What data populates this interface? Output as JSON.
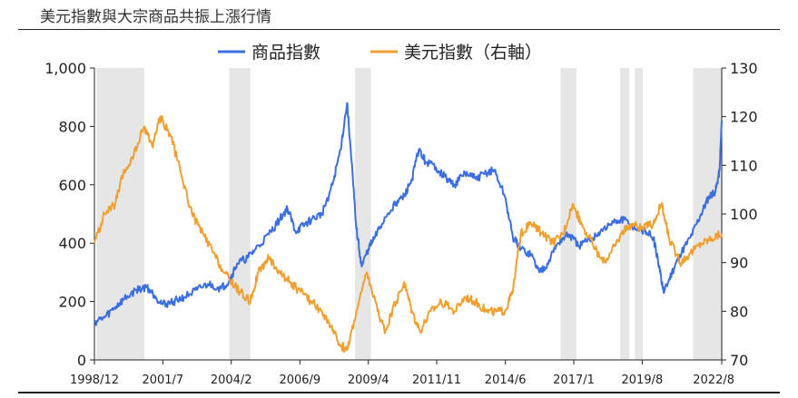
{
  "chart_data": {
    "type": "line",
    "title": "美元指數與大宗商品共振上漲行情",
    "x_tick_labels": [
      "1998/12",
      "2001/7",
      "2004/2",
      "2006/9",
      "2009/4",
      "2011/11",
      "2014/6",
      "2017/1",
      "2019/8",
      "2022/8"
    ],
    "x_tick_years": [
      1998.92,
      2001.5,
      2004.08,
      2006.67,
      2009.25,
      2011.83,
      2014.42,
      2017.0,
      2019.58,
      2022.58
    ],
    "x_range": [
      1998.92,
      2022.58
    ],
    "left_axis": {
      "label": "",
      "range": [
        0,
        1000
      ],
      "ticks": [
        0,
        200,
        400,
        600,
        800,
        1000
      ],
      "tick_labels": [
        "0",
        "200",
        "400",
        "600",
        "800",
        "1,000"
      ]
    },
    "right_axis": {
      "label": "",
      "range": [
        70,
        130
      ],
      "ticks": [
        70,
        80,
        90,
        100,
        110,
        120,
        130
      ],
      "tick_labels": [
        "70",
        "80",
        "90",
        "100",
        "110",
        "120",
        "130"
      ]
    },
    "legend": {
      "position": "top-center"
    },
    "shaded_periods": [
      [
        1999.0,
        2000.8
      ],
      [
        2004.0,
        2004.8
      ],
      [
        2008.75,
        2009.35
      ],
      [
        2016.5,
        2017.1
      ],
      [
        2018.75,
        2019.1
      ],
      [
        2019.3,
        2019.6
      ],
      [
        2021.5,
        2022.58
      ]
    ],
    "series": [
      {
        "name": "商品指數",
        "axis": "left",
        "color": "#3d6ee0",
        "x": [
          1998.92,
          1999.3,
          1999.7,
          2000.0,
          2000.5,
          2000.9,
          2001.2,
          2001.5,
          2001.9,
          2002.3,
          2002.8,
          2003.2,
          2003.7,
          2004.0,
          2004.3,
          2004.7,
          2005.0,
          2005.5,
          2005.9,
          2006.2,
          2006.5,
          2006.8,
          2007.1,
          2007.5,
          2007.9,
          2008.2,
          2008.45,
          2008.6,
          2008.8,
          2009.0,
          2009.25,
          2009.5,
          2009.9,
          2010.3,
          2010.6,
          2010.9,
          2011.15,
          2011.4,
          2011.8,
          2012.2,
          2012.5,
          2012.9,
          2013.3,
          2013.7,
          2014.0,
          2014.4,
          2014.7,
          2015.0,
          2015.4,
          2015.7,
          2016.0,
          2016.4,
          2016.8,
          2017.2,
          2017.6,
          2018.0,
          2018.5,
          2018.9,
          2019.3,
          2019.7,
          2020.0,
          2020.25,
          2020.4,
          2020.7,
          2021.0,
          2021.4,
          2021.8,
          2022.1,
          2022.35,
          2022.5,
          2022.58
        ],
        "values": [
          130,
          145,
          180,
          205,
          240,
          250,
          220,
          190,
          200,
          215,
          240,
          260,
          245,
          270,
          330,
          350,
          380,
          430,
          480,
          520,
          440,
          460,
          480,
          500,
          600,
          720,
          880,
          700,
          450,
          320,
          380,
          420,
          490,
          540,
          560,
          620,
          720,
          680,
          660,
          620,
          600,
          640,
          620,
          640,
          650,
          560,
          420,
          380,
          360,
          300,
          330,
          400,
          430,
          390,
          410,
          440,
          470,
          480,
          450,
          440,
          420,
          300,
          230,
          300,
          360,
          420,
          500,
          560,
          580,
          650,
          820
        ]
      },
      {
        "name": "美元指數（右軸）",
        "axis": "right",
        "color": "#f0a030",
        "x": [
          1998.92,
          1999.3,
          1999.7,
          2000.0,
          2000.4,
          2000.8,
          2001.1,
          2001.4,
          2001.8,
          2002.2,
          2002.6,
          2003.0,
          2003.4,
          2003.8,
          2004.1,
          2004.4,
          2004.8,
          2005.1,
          2005.5,
          2005.9,
          2006.3,
          2006.7,
          2007.1,
          2007.5,
          2007.9,
          2008.2,
          2008.45,
          2008.8,
          2009.2,
          2009.6,
          2009.9,
          2010.3,
          2010.6,
          2010.9,
          2011.2,
          2011.6,
          2012.0,
          2012.5,
          2012.9,
          2013.3,
          2013.7,
          2014.1,
          2014.4,
          2014.7,
          2015.0,
          2015.4,
          2015.8,
          2016.2,
          2016.6,
          2016.95,
          2017.3,
          2017.7,
          2018.1,
          2018.4,
          2018.8,
          2019.2,
          2019.6,
          2020.0,
          2020.3,
          2020.6,
          2021.0,
          2021.4,
          2021.8,
          2022.2,
          2022.58
        ],
        "values": [
          94,
          100,
          102,
          108,
          112,
          118,
          114,
          120,
          116,
          108,
          100,
          96,
          92,
          88,
          86,
          84,
          82,
          88,
          91,
          88,
          86,
          84,
          82,
          80,
          76,
          73,
          72,
          80,
          88,
          80,
          76,
          82,
          86,
          80,
          76,
          80,
          82,
          80,
          83,
          82,
          80,
          80,
          80,
          84,
          96,
          98,
          96,
          94,
          96,
          102,
          98,
          94,
          90,
          92,
          96,
          98,
          97,
          98,
          102,
          95,
          90,
          92,
          94,
          95,
          96
        ]
      }
    ]
  }
}
